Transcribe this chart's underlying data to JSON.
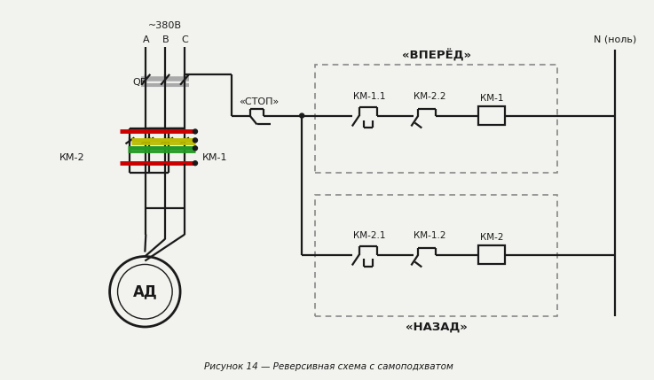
{
  "title": "Рисунок 14 — Реверсивная схема с самоподхватом",
  "bg_color": "#f2f2ee",
  "line_color": "#1a1a1a",
  "dashed_box_color": "#888888",
  "label_380": "~380В",
  "label_A": "A",
  "label_B": "B",
  "label_C": "C",
  "label_QF": "QF",
  "label_KM1_left": "КМ-1",
  "label_KM2_left": "КМ-2",
  "label_stop": "«СТОП»",
  "label_vpered": "«ВПЕРЁД»",
  "label_nazad": "«НАЗАД»",
  "label_KM11": "КМ-1.1",
  "label_KM22": "КМ-2.2",
  "label_KM1_right": "КМ-1",
  "label_KM21": "КМ-2.1",
  "label_KM12": "КМ-1.2",
  "label_KM2_right": "КМ-2",
  "label_N": "N (ноль)",
  "label_AD": "АД",
  "red": "#cc0000",
  "green": "#229922",
  "yellow": "#bbbb00",
  "gray_busbar": "#aaaaaa"
}
